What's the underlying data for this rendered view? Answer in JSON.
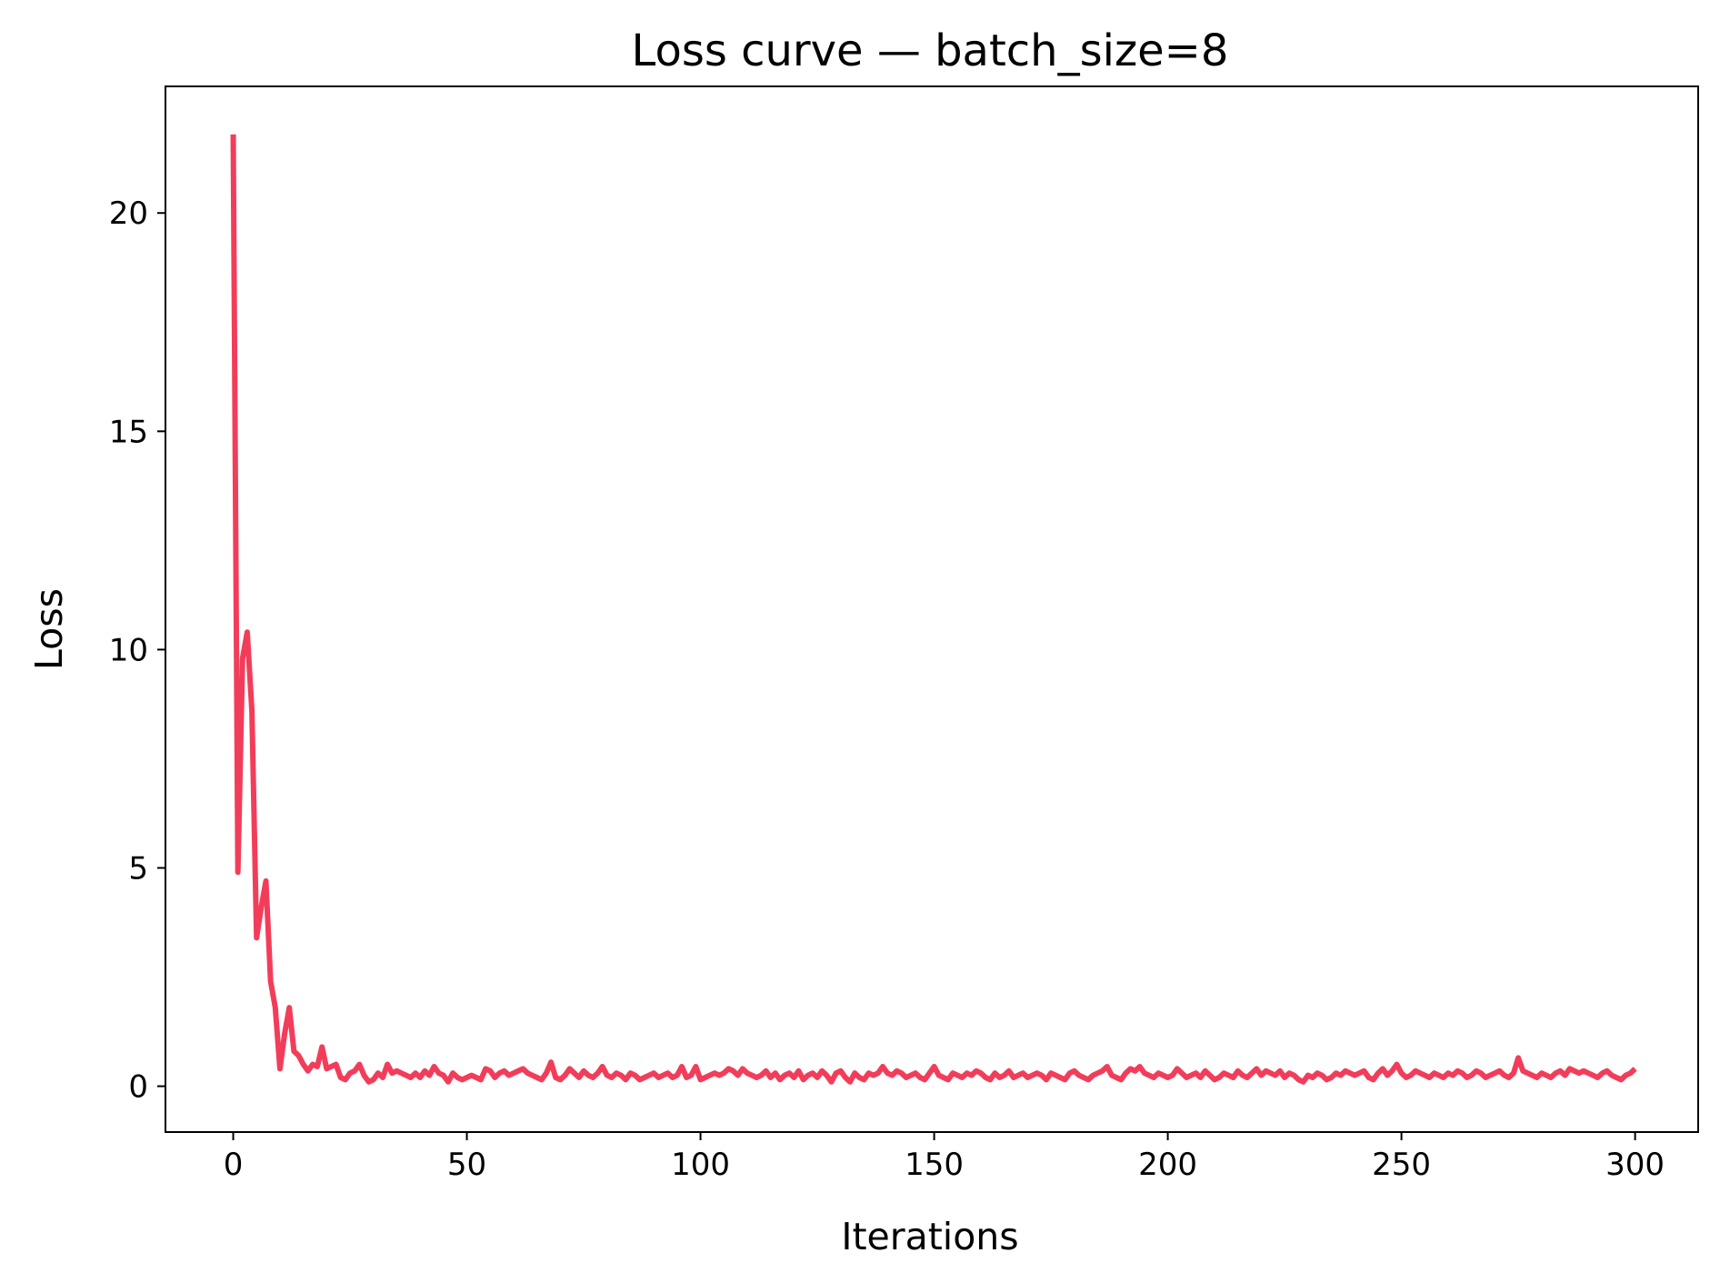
{
  "colors": {
    "series": "#f23d5a",
    "axes": "#000000",
    "background": "#ffffff"
  },
  "chart_data": {
    "type": "line",
    "title": "Loss curve — batch_size=8",
    "xlabel": "Iterations",
    "ylabel": "Loss",
    "xlim": [
      -14.5,
      313.5
    ],
    "ylim": [
      -1.05,
      22.9
    ],
    "grid": false,
    "legend": "none",
    "xticks": [
      0,
      50,
      100,
      150,
      200,
      250,
      300
    ],
    "xtick_labels": [
      "0",
      "50",
      "100",
      "150",
      "200",
      "250",
      "300"
    ],
    "yticks": [
      0,
      5,
      10,
      15,
      20
    ],
    "ytick_labels": [
      "0",
      "5",
      "10",
      "15",
      "20"
    ],
    "series": [
      {
        "x_start": 0,
        "x_step": 1,
        "values": [
          21.8,
          4.9,
          9.8,
          10.4,
          8.6,
          3.4,
          4.1,
          4.7,
          2.4,
          1.8,
          0.4,
          1.2,
          1.8,
          0.8,
          0.7,
          0.5,
          0.35,
          0.5,
          0.45,
          0.9,
          0.4,
          0.45,
          0.5,
          0.2,
          0.15,
          0.3,
          0.35,
          0.5,
          0.25,
          0.1,
          0.15,
          0.3,
          0.2,
          0.5,
          0.3,
          0.35,
          0.3,
          0.25,
          0.2,
          0.3,
          0.2,
          0.35,
          0.25,
          0.45,
          0.3,
          0.25,
          0.1,
          0.3,
          0.2,
          0.15,
          0.2,
          0.25,
          0.2,
          0.15,
          0.4,
          0.35,
          0.2,
          0.3,
          0.35,
          0.25,
          0.3,
          0.35,
          0.4,
          0.3,
          0.25,
          0.2,
          0.15,
          0.3,
          0.55,
          0.2,
          0.15,
          0.25,
          0.4,
          0.3,
          0.2,
          0.35,
          0.25,
          0.2,
          0.3,
          0.45,
          0.25,
          0.2,
          0.3,
          0.25,
          0.15,
          0.3,
          0.25,
          0.15,
          0.2,
          0.25,
          0.3,
          0.2,
          0.25,
          0.3,
          0.2,
          0.25,
          0.45,
          0.2,
          0.25,
          0.45,
          0.15,
          0.2,
          0.25,
          0.3,
          0.25,
          0.3,
          0.4,
          0.35,
          0.25,
          0.4,
          0.3,
          0.25,
          0.2,
          0.25,
          0.35,
          0.2,
          0.3,
          0.15,
          0.25,
          0.3,
          0.2,
          0.35,
          0.15,
          0.25,
          0.3,
          0.2,
          0.35,
          0.25,
          0.1,
          0.3,
          0.35,
          0.2,
          0.1,
          0.3,
          0.2,
          0.15,
          0.3,
          0.25,
          0.3,
          0.45,
          0.3,
          0.25,
          0.35,
          0.3,
          0.2,
          0.25,
          0.3,
          0.2,
          0.15,
          0.3,
          0.45,
          0.25,
          0.2,
          0.15,
          0.3,
          0.25,
          0.2,
          0.3,
          0.25,
          0.35,
          0.3,
          0.2,
          0.15,
          0.3,
          0.2,
          0.25,
          0.35,
          0.2,
          0.25,
          0.3,
          0.2,
          0.25,
          0.3,
          0.25,
          0.15,
          0.3,
          0.25,
          0.2,
          0.15,
          0.3,
          0.35,
          0.25,
          0.2,
          0.15,
          0.25,
          0.3,
          0.35,
          0.45,
          0.25,
          0.2,
          0.15,
          0.3,
          0.4,
          0.35,
          0.45,
          0.3,
          0.25,
          0.2,
          0.3,
          0.25,
          0.2,
          0.25,
          0.4,
          0.3,
          0.2,
          0.25,
          0.3,
          0.2,
          0.35,
          0.25,
          0.15,
          0.2,
          0.3,
          0.25,
          0.2,
          0.35,
          0.25,
          0.2,
          0.3,
          0.4,
          0.25,
          0.35,
          0.3,
          0.25,
          0.35,
          0.2,
          0.3,
          0.25,
          0.15,
          0.1,
          0.25,
          0.2,
          0.3,
          0.25,
          0.15,
          0.2,
          0.3,
          0.25,
          0.35,
          0.3,
          0.25,
          0.3,
          0.35,
          0.2,
          0.15,
          0.3,
          0.4,
          0.25,
          0.35,
          0.5,
          0.3,
          0.2,
          0.25,
          0.35,
          0.3,
          0.25,
          0.2,
          0.3,
          0.25,
          0.2,
          0.3,
          0.25,
          0.35,
          0.3,
          0.2,
          0.25,
          0.35,
          0.3,
          0.2,
          0.25,
          0.3,
          0.35,
          0.25,
          0.2,
          0.3,
          0.65,
          0.35,
          0.3,
          0.25,
          0.2,
          0.3,
          0.25,
          0.2,
          0.3,
          0.35,
          0.25,
          0.4,
          0.35,
          0.3,
          0.35,
          0.3,
          0.25,
          0.2,
          0.3,
          0.35,
          0.25,
          0.2,
          0.15,
          0.25,
          0.3,
          0.4
        ]
      }
    ]
  }
}
